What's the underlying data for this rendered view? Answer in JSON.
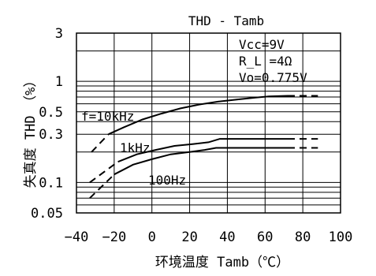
{
  "chart_data": {
    "type": "line",
    "title": "THD - Tamb",
    "xlabel": "环境温度 Tamb（℃）",
    "ylabel": "失真度 THD　（%）",
    "x_scale": "linear",
    "y_scale": "log",
    "xlim": [
      -40,
      100
    ],
    "ylim": [
      0.05,
      3
    ],
    "x_ticks": [
      -40,
      -20,
      0,
      20,
      40,
      60,
      80,
      100
    ],
    "x_tick_labels": [
      "−40",
      "−20",
      "0",
      "20",
      "40",
      "60",
      "80",
      "100"
    ],
    "y_ticks": [
      0.05,
      0.1,
      0.3,
      0.5,
      1,
      3
    ],
    "y_tick_labels": [
      "0.05",
      "0.1",
      "0.3",
      "0.5",
      "1",
      "3"
    ],
    "x_grid": [
      -40,
      -20,
      0,
      20,
      40,
      60,
      80,
      100
    ],
    "y_grid": [
      0.05,
      0.06,
      0.07,
      0.08,
      0.09,
      0.1,
      0.2,
      0.3,
      0.4,
      0.5,
      0.6,
      0.7,
      0.8,
      0.9,
      1,
      2,
      3
    ],
    "conditions": [
      "Vcc=9V",
      "R_L =4Ω",
      "Vo=0.775V"
    ],
    "series": [
      {
        "name": "f=10kHz",
        "solid": [
          [
            -23,
            0.3
          ],
          [
            -15,
            0.35
          ],
          [
            -5,
            0.42
          ],
          [
            5,
            0.48
          ],
          [
            15,
            0.54
          ],
          [
            25,
            0.59
          ],
          [
            35,
            0.63
          ],
          [
            45,
            0.66
          ],
          [
            55,
            0.69
          ],
          [
            62,
            0.71
          ],
          [
            72,
            0.72
          ]
        ],
        "dashed_start": [
          [
            -32,
            0.2
          ],
          [
            -23,
            0.3
          ]
        ],
        "dashed_end": [
          [
            72,
            0.72
          ],
          [
            88,
            0.72
          ]
        ]
      },
      {
        "name": "1kHz",
        "solid": [
          [
            -18,
            0.16
          ],
          [
            -8,
            0.19
          ],
          [
            2,
            0.21
          ],
          [
            12,
            0.23
          ],
          [
            22,
            0.24
          ],
          [
            30,
            0.25
          ],
          [
            36,
            0.27
          ],
          [
            72,
            0.27
          ]
        ],
        "dashed_start": [
          [
            -33,
            0.1
          ],
          [
            -18,
            0.16
          ]
        ],
        "dashed_end": [
          [
            72,
            0.27
          ],
          [
            88,
            0.27
          ]
        ]
      },
      {
        "name": "100Hz",
        "solid": [
          [
            -20,
            0.12
          ],
          [
            -10,
            0.15
          ],
          [
            0,
            0.17
          ],
          [
            10,
            0.19
          ],
          [
            20,
            0.2
          ],
          [
            28,
            0.21
          ],
          [
            34,
            0.22
          ],
          [
            72,
            0.22
          ]
        ],
        "dashed_start": [
          [
            -33,
            0.07
          ],
          [
            -20,
            0.12
          ]
        ],
        "dashed_end": [
          [
            72,
            0.22
          ],
          [
            88,
            0.22
          ]
        ]
      }
    ]
  }
}
